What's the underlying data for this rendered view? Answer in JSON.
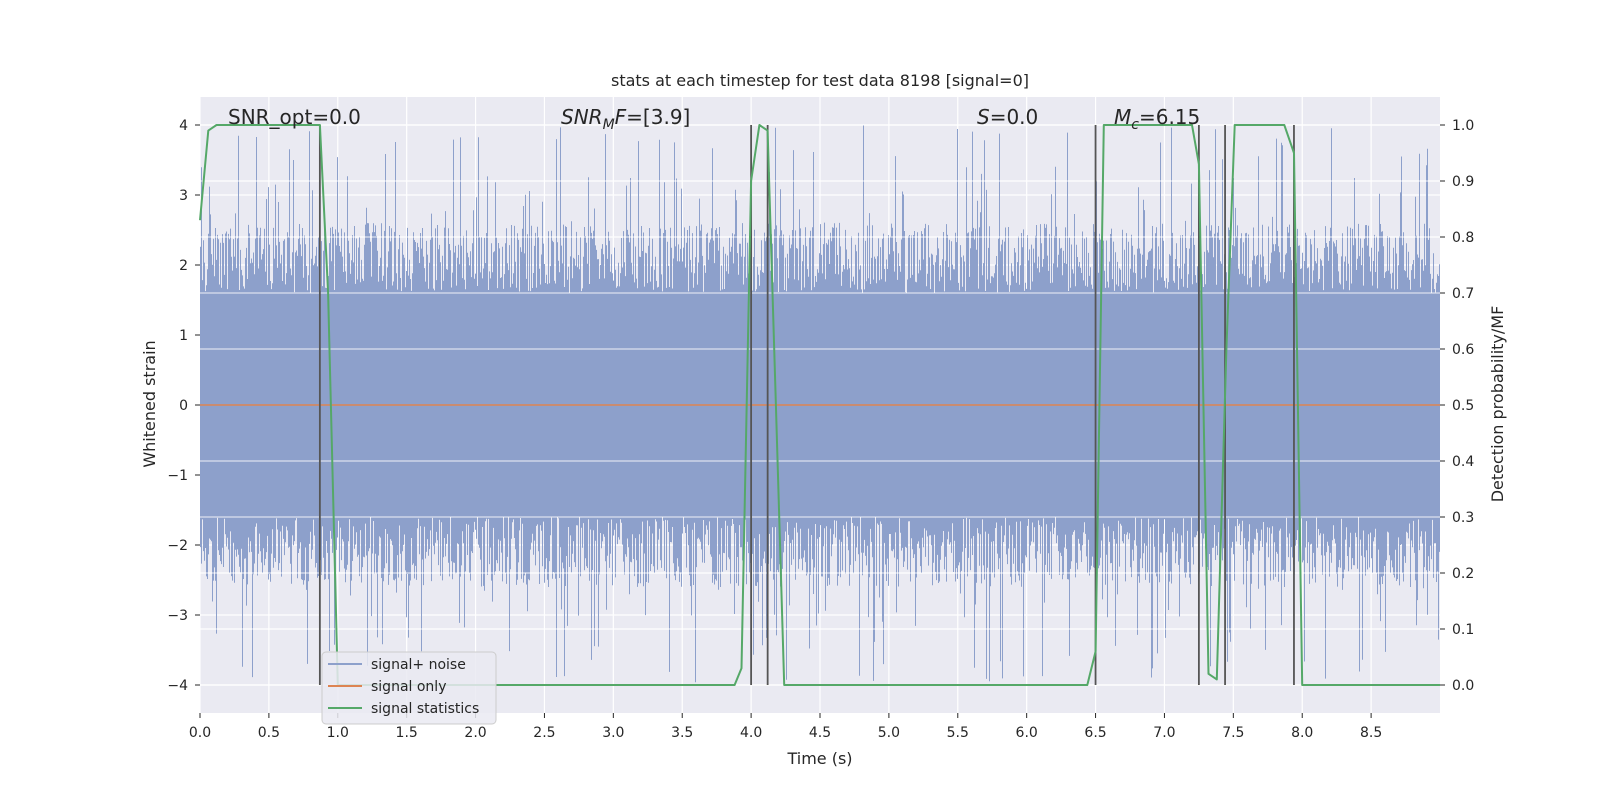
{
  "chart_data": {
    "type": "line",
    "title": "stats at each timestep for test data 8198 [signal=0]",
    "xlabel": "Time (s)",
    "ylabel_left": "Whitened strain",
    "ylabel_right": "Detection probability/MF",
    "xlim": [
      0.0,
      9.0
    ],
    "ylim_left": [
      -4.4,
      4.4
    ],
    "ylim_right": [
      -0.05,
      1.05
    ],
    "x_ticks": [
      0.0,
      0.5,
      1.0,
      1.5,
      2.0,
      2.5,
      3.0,
      3.5,
      4.0,
      4.5,
      5.0,
      5.5,
      6.0,
      6.5,
      7.0,
      7.5,
      8.0,
      8.5
    ],
    "x_tick_labels": [
      "0.0",
      "0.5",
      "1.0",
      "1.5",
      "2.0",
      "2.5",
      "3.0",
      "3.5",
      "4.0",
      "4.5",
      "5.0",
      "5.5",
      "6.0",
      "6.5",
      "7.0",
      "7.5",
      "8.0",
      "8.5"
    ],
    "y_left_ticks": [
      -4,
      -3,
      -2,
      -1,
      0,
      1,
      2,
      3,
      4
    ],
    "y_left_tick_labels": [
      "−4",
      "−3",
      "−2",
      "−1",
      "0",
      "1",
      "2",
      "3",
      "4"
    ],
    "y_right_ticks": [
      0.0,
      0.1,
      0.2,
      0.3,
      0.4,
      0.5,
      0.6,
      0.7,
      0.8,
      0.9,
      1.0
    ],
    "y_right_tick_labels": [
      "0.0",
      "0.1",
      "0.2",
      "0.3",
      "0.4",
      "0.5",
      "0.6",
      "0.7",
      "0.8",
      "0.9",
      "1.0"
    ],
    "grid": true,
    "legend_placement": "lower-left",
    "annotations": [
      {
        "key": "snr_opt",
        "x": 0.2,
        "text": "SNR_opt=0.0"
      },
      {
        "key": "snr_mf",
        "x": 2.6,
        "main": "SNR",
        "sub": "M",
        "rest": "F=[3.9]"
      },
      {
        "key": "s",
        "x": 5.6,
        "main": "S",
        "rest": "=0.0"
      },
      {
        "key": "mc",
        "x": 6.6,
        "main": "M",
        "sub": "c",
        "rest": "=6.15"
      }
    ],
    "series": [
      {
        "name": "signal+ noise",
        "color": "#8da0cb",
        "axis": "left",
        "style": "noise-band",
        "amplitude_envelope": {
          "core": 1.6,
          "typical_peak": 2.6,
          "max": 4.0
        }
      },
      {
        "name": "signal only",
        "color": "#dd8452",
        "axis": "left",
        "x": [
          0.0,
          9.0
        ],
        "y": [
          0.0,
          0.0
        ]
      },
      {
        "name": "signal statistics",
        "color": "#55a868",
        "axis": "right",
        "x": [
          0.0,
          0.06,
          0.12,
          0.87,
          0.93,
          1.0,
          3.88,
          3.93,
          4.0,
          4.06,
          4.12,
          4.18,
          4.24,
          6.44,
          6.5,
          6.56,
          7.2,
          7.25,
          7.32,
          7.38,
          7.45,
          7.51,
          7.87,
          7.94,
          8.0,
          9.0
        ],
        "y": [
          0.83,
          0.99,
          1.0,
          1.0,
          0.7,
          0.0,
          0.0,
          0.03,
          0.9,
          1.0,
          0.99,
          0.5,
          0.0,
          0.0,
          0.06,
          1.0,
          1.0,
          0.93,
          0.02,
          0.01,
          0.6,
          1.0,
          1.0,
          0.95,
          0.0,
          0.0
        ]
      }
    ],
    "vertical_markers": [
      0.87,
      4.0,
      4.12,
      6.5,
      7.25,
      7.44,
      7.94
    ],
    "marker_color": "#555555"
  }
}
